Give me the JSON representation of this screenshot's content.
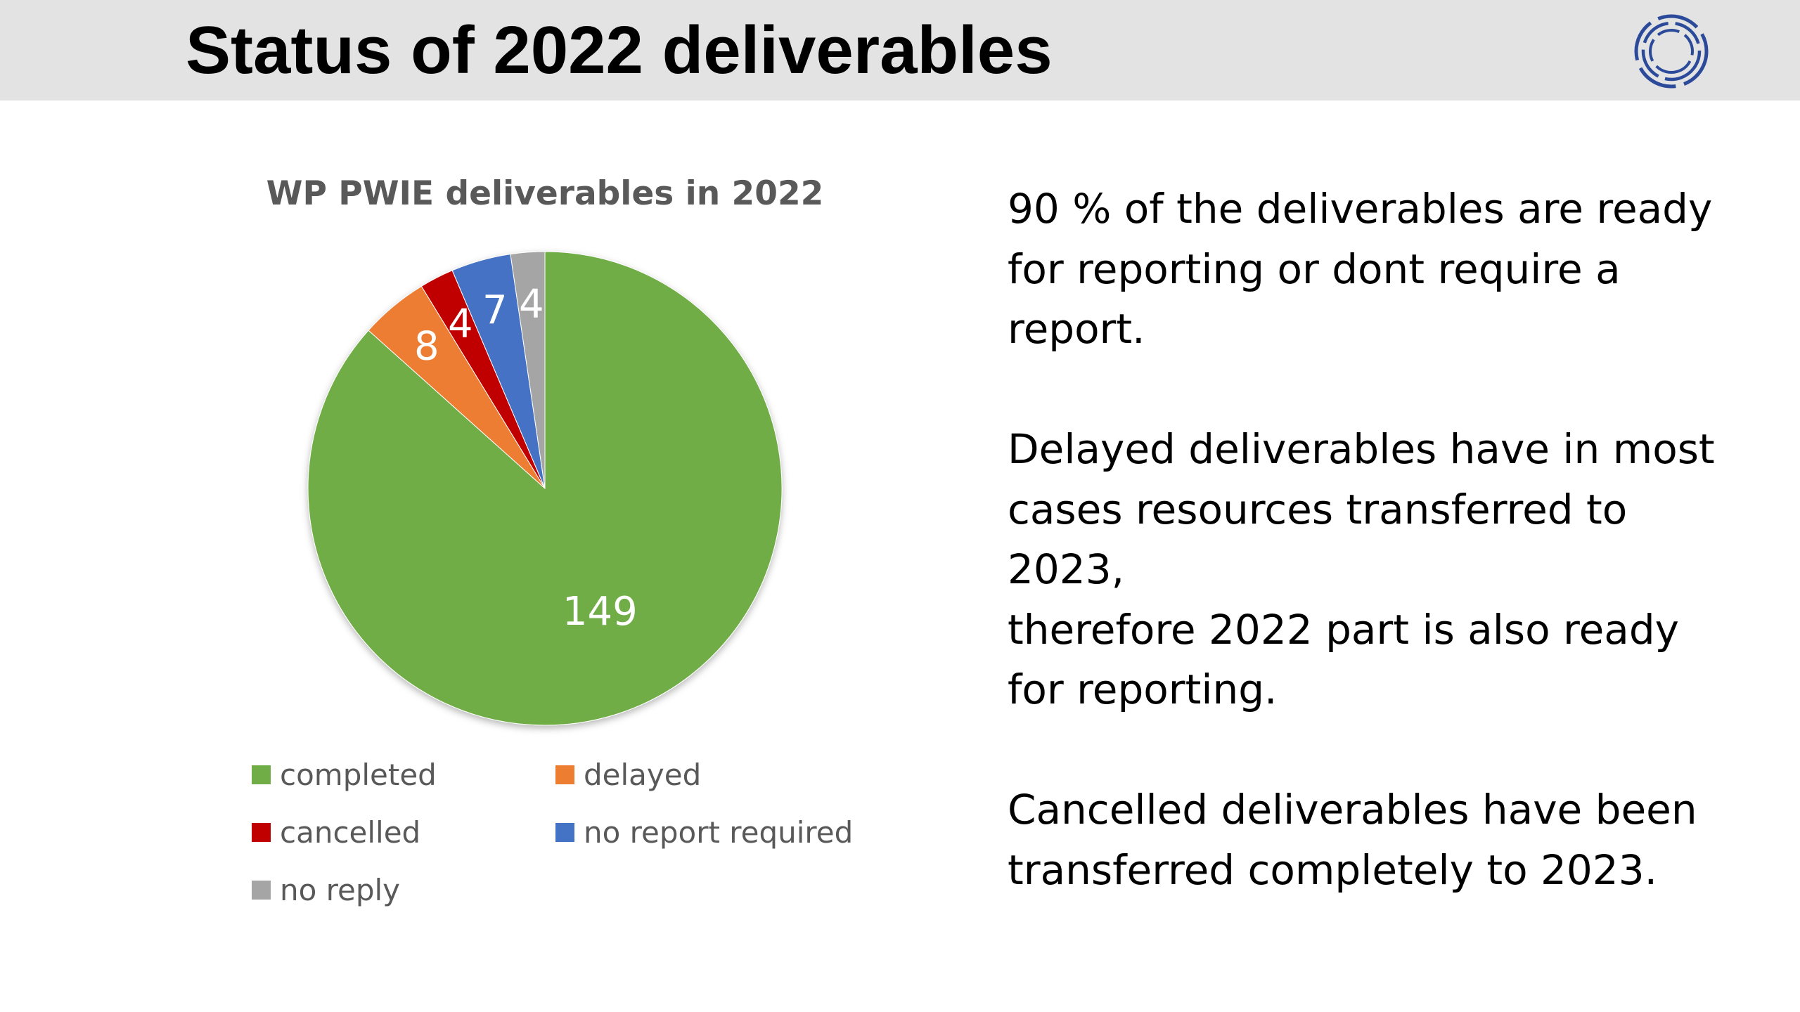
{
  "slide": {
    "title": "Status of 2022 deliverables"
  },
  "logo": {
    "icon": "ring-emblem-icon",
    "color": "#2c4a9a"
  },
  "body": {
    "paragraphs": [
      [
        "90 % of the deliverables are ready",
        "for reporting or dont require a",
        "report."
      ],
      [
        "Delayed deliverables have in most",
        "cases resources transferred to",
        "2023,",
        "therefore 2022 part is also ready",
        "for reporting."
      ],
      [
        "Cancelled deliverables have been",
        "transferred completely to 2023."
      ]
    ]
  },
  "chart_data": {
    "type": "pie",
    "title": "WP PWIE deliverables in 2022",
    "categories": [
      "completed",
      "delayed",
      "cancelled",
      "no report required",
      "no reply"
    ],
    "values": [
      149,
      8,
      4,
      7,
      4
    ],
    "data_labels": [
      "149",
      "8",
      "4",
      "7",
      "4"
    ],
    "colors": [
      "#70ad47",
      "#ed7d31",
      "#c00000",
      "#4472c4",
      "#a5a5a5"
    ],
    "start": "12 o'clock, clockwise",
    "legend": {
      "position": "bottom",
      "columns": 2
    }
  }
}
